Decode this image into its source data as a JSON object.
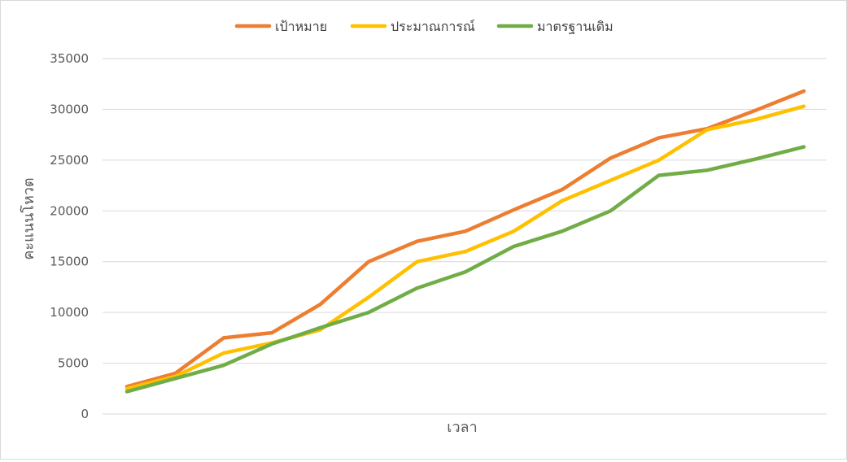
{
  "chart_data": {
    "type": "line",
    "title": "",
    "xlabel": "เวลา",
    "ylabel": "คะแนนโหวต",
    "ylim": [
      0,
      35000
    ],
    "yticks": [
      0,
      5000,
      10000,
      15000,
      20000,
      25000,
      30000,
      35000
    ],
    "ytick_labels": [
      "0",
      "5000",
      "10000",
      "15000",
      "20000",
      "25000",
      "30000",
      "35000"
    ],
    "x": [
      1,
      2,
      3,
      4,
      5,
      6,
      7,
      8,
      9,
      10,
      11,
      12,
      13,
      14,
      15
    ],
    "grid": "horizontal",
    "legend_position": "top",
    "series": [
      {
        "name": "เป้าหมาย",
        "color": "#ED7D31",
        "values": [
          2700,
          4000,
          7500,
          8000,
          10800,
          15000,
          17000,
          18000,
          20100,
          22100,
          25200,
          27200,
          28100,
          29900,
          31800
        ]
      },
      {
        "name": "ประมาณการณ์",
        "color": "#FFC000",
        "values": [
          2500,
          3700,
          6000,
          7000,
          8300,
          11500,
          15000,
          16000,
          18000,
          21000,
          23000,
          25000,
          28000,
          29000,
          30300
        ]
      },
      {
        "name": "มาตรฐานเดิม",
        "color": "#70AD47",
        "values": [
          2200,
          3500,
          4800,
          6900,
          8500,
          10000,
          12400,
          14000,
          16500,
          18000,
          20000,
          23500,
          24000,
          25100,
          26300
        ]
      }
    ]
  }
}
